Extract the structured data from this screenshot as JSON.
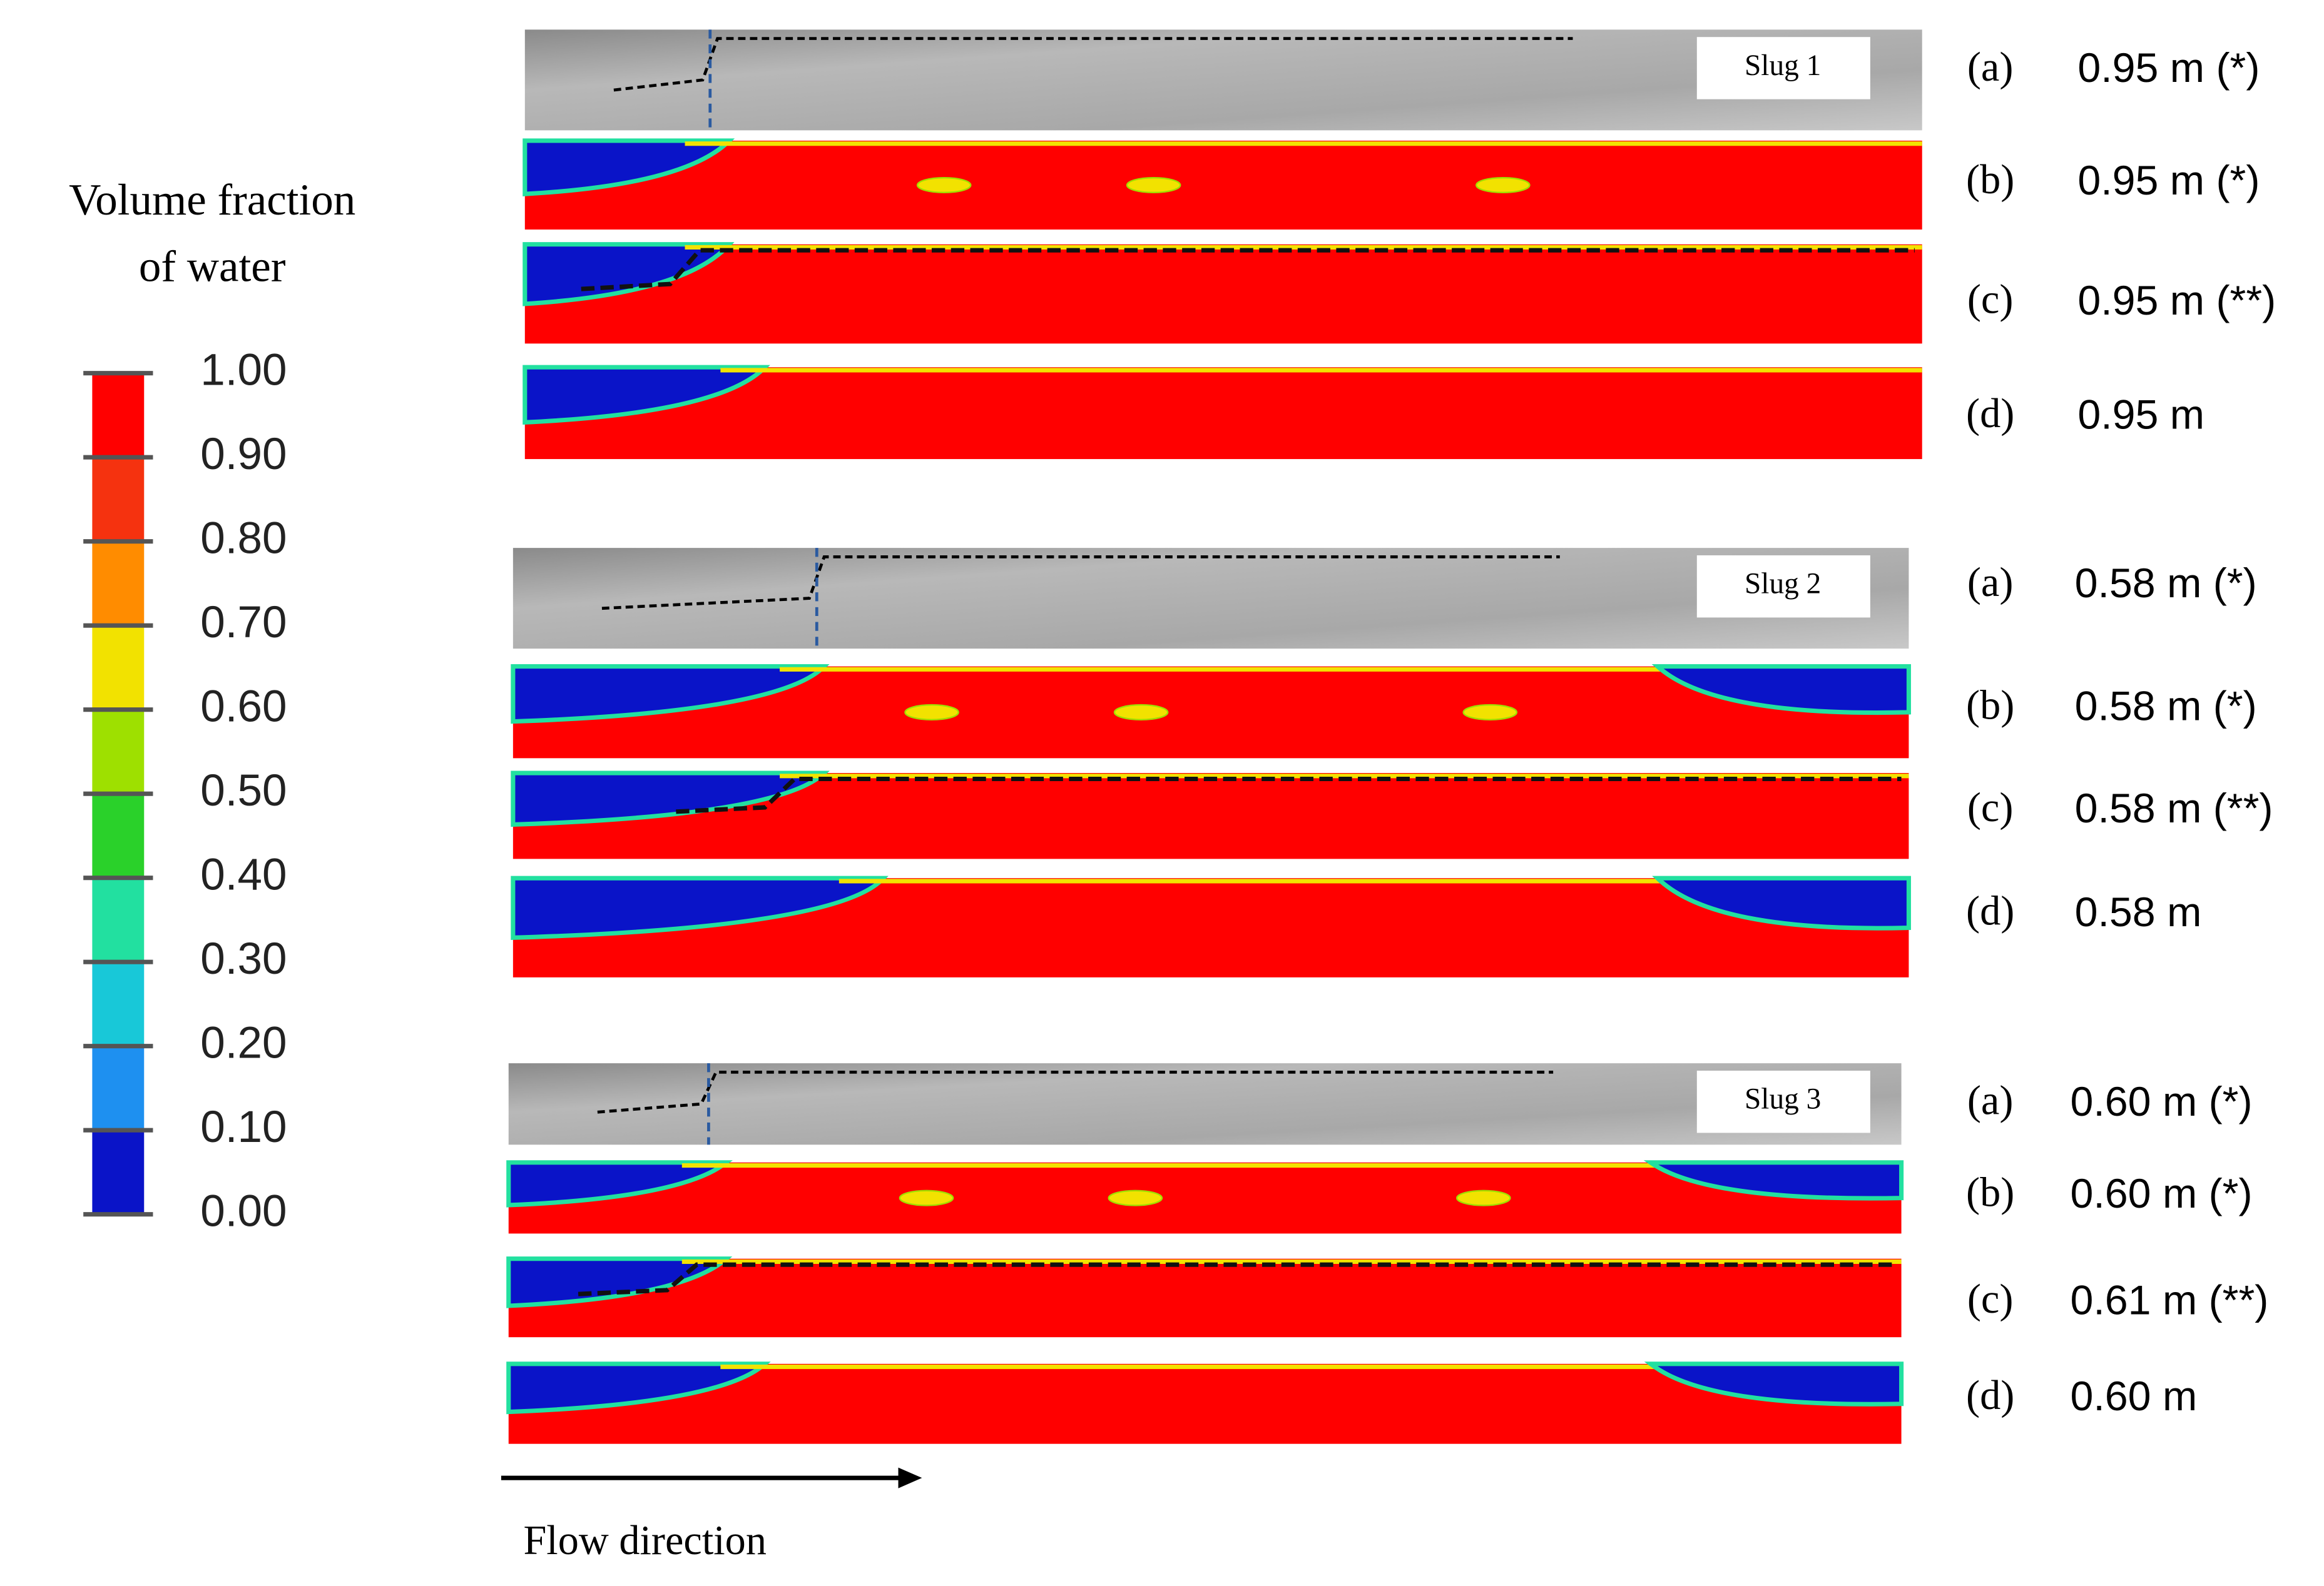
{
  "colorbar": {
    "title_lines": [
      "Volume fraction",
      "of water"
    ],
    "ticks": [
      "1.00",
      "0.90",
      "0.80",
      "0.70",
      "0.60",
      "0.50",
      "0.40",
      "0.30",
      "0.20",
      "0.10",
      "0.00"
    ],
    "band_colors": [
      "#ff0000",
      "#f5320f",
      "#ff8c00",
      "#f2e200",
      "#9ee000",
      "#2ad12a",
      "#22e0a0",
      "#18c8d8",
      "#1e90f0",
      "#0a14c8"
    ]
  },
  "groups": [
    {
      "tag": "Slug 1",
      "rows": [
        {
          "label": "(a)",
          "value": "0.95 m (*)"
        },
        {
          "label": "(b)",
          "value": "0.95 m (*)"
        },
        {
          "label": "(c)",
          "value": "0.95 m (**)"
        },
        {
          "label": "(d)",
          "value": "0.95 m"
        }
      ]
    },
    {
      "tag": "Slug 2",
      "rows": [
        {
          "label": "(a)",
          "value": "0.58 m (*)"
        },
        {
          "label": "(b)",
          "value": "0.58 m (*)"
        },
        {
          "label": "(c)",
          "value": "0.58 m (**)"
        },
        {
          "label": "(d)",
          "value": "0.58 m"
        }
      ]
    },
    {
      "tag": "Slug 3",
      "rows": [
        {
          "label": "(a)",
          "value": "0.60 m (*)"
        },
        {
          "label": "(b)",
          "value": "0.60 m (*)"
        },
        {
          "label": "(c)",
          "value": "0.61 m (**)"
        },
        {
          "label": "(d)",
          "value": "0.60 m"
        }
      ]
    }
  ],
  "flow_direction": "Flow direction"
}
